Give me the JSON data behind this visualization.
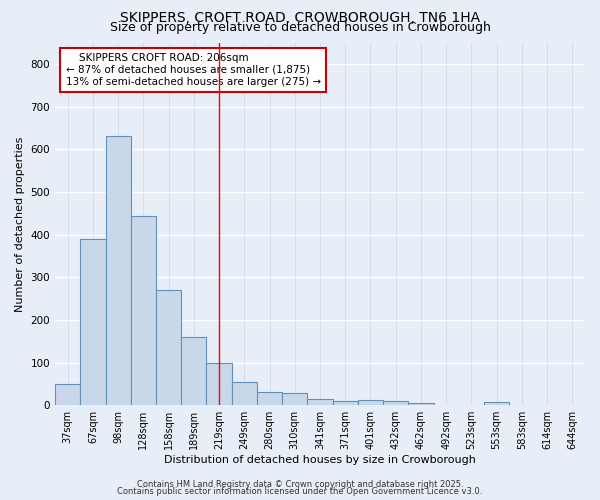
{
  "title": "SKIPPERS, CROFT ROAD, CROWBOROUGH, TN6 1HA",
  "subtitle": "Size of property relative to detached houses in Crowborough",
  "xlabel": "Distribution of detached houses by size in Crowborough",
  "ylabel": "Number of detached properties",
  "bar_color": "#c8d8ea",
  "bar_edge_color": "#6090b8",
  "background_color": "#e8eef8",
  "grid_color": "#c5d0e0",
  "categories": [
    "37sqm",
    "67sqm",
    "98sqm",
    "128sqm",
    "158sqm",
    "189sqm",
    "219sqm",
    "249sqm",
    "280sqm",
    "310sqm",
    "341sqm",
    "371sqm",
    "401sqm",
    "432sqm",
    "462sqm",
    "492sqm",
    "523sqm",
    "553sqm",
    "583sqm",
    "614sqm",
    "644sqm"
  ],
  "values": [
    50,
    390,
    630,
    443,
    270,
    160,
    100,
    55,
    30,
    28,
    14,
    10,
    13,
    10,
    5,
    0,
    0,
    7,
    0,
    0,
    0
  ],
  "ylim": [
    0,
    850
  ],
  "yticks": [
    0,
    100,
    200,
    300,
    400,
    500,
    600,
    700,
    800
  ],
  "red_line_x": 6.0,
  "annotation_line1": "    SKIPPERS CROFT ROAD: 206sqm",
  "annotation_line2": "← 87% of detached houses are smaller (1,875)",
  "annotation_line3": "13% of semi-detached houses are larger (275) →",
  "annotation_box_color": "#ffffff",
  "annotation_box_edge_color": "#cc0000",
  "footer_line1": "Contains HM Land Registry data © Crown copyright and database right 2025.",
  "footer_line2": "Contains public sector information licensed under the Open Government Licence v3.0.",
  "title_fontsize": 10,
  "subtitle_fontsize": 9,
  "tick_fontsize": 7,
  "axis_label_fontsize": 8,
  "annotation_fontsize": 7.5,
  "footer_fontsize": 6
}
